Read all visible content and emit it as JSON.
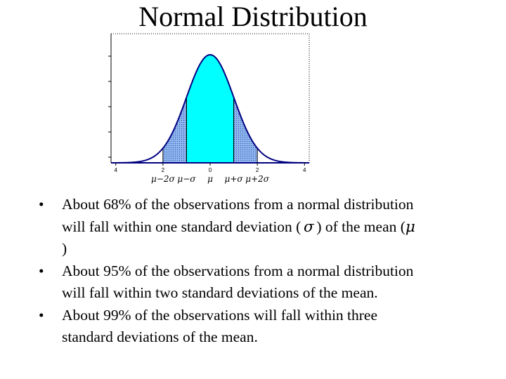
{
  "slide": {
    "title": "Normal Distribution"
  },
  "chart_data": {
    "type": "area",
    "x_ticks": [
      "4",
      "2",
      "0",
      "2",
      "4"
    ],
    "x_interval_labels": [
      "μ−2σ",
      "μ−σ",
      "μ",
      "μ+σ",
      "μ+2σ"
    ],
    "curve": "normal density",
    "shaded_intervals": [
      {
        "from": -1,
        "to": 1,
        "fill": "#00ffff"
      },
      {
        "from": -2,
        "to": -1,
        "fill": "#6fa0e0"
      },
      {
        "from": 1,
        "to": 2,
        "fill": "#6fa0e0"
      }
    ],
    "outline_color": "#000080"
  },
  "bullets": [
    {
      "marker": "•",
      "line1": "About 68% of the observations from a normal distribution",
      "line2a": "will fall within one standard deviation (",
      "sigma": "σ",
      "line2b": ") of the mean (",
      "mu": "μ",
      "line3": ")"
    },
    {
      "marker": "•",
      "line1": "About 95% of the observations from a normal distribution",
      "line2": "will fall within two standard deviations of the mean."
    },
    {
      "marker": "•",
      "line1": "About 99% of the observations will fall within three",
      "line2": "standard deviations of the mean."
    }
  ]
}
